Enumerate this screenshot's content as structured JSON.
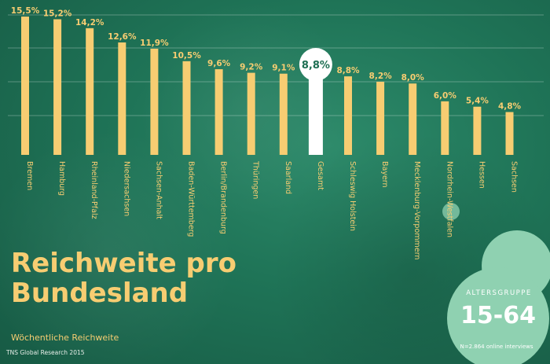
{
  "chart_data": {
    "type": "bar",
    "categories": [
      "Bremen",
      "Hamburg",
      "Rheinland-Pfalz",
      "Niedersachsen",
      "Sachsen-Anhalt",
      "Baden-Württemberg",
      "Berlin/Brandenburg",
      "Thüringen",
      "Saarland",
      "Gesamt",
      "Schleswig Holstein",
      "Bayern",
      "Mecklenburg-Vorpommern",
      "Nordrhein-Westfalen",
      "Hessen",
      "Sachsen"
    ],
    "values": [
      15.5,
      15.2,
      14.2,
      12.6,
      11.9,
      10.5,
      9.6,
      9.2,
      9.1,
      8.8,
      8.8,
      8.2,
      8.0,
      6.0,
      5.4,
      4.8
    ],
    "value_labels": [
      "15,5%",
      "15,2%",
      "14,2%",
      "12,6%",
      "11,9%",
      "10,5%",
      "9,6%",
      "9,2%",
      "9,1%",
      "8,8%",
      "8,8%",
      "8,2%",
      "8,0%",
      "6,0%",
      "5,4%",
      "4,8%"
    ],
    "highlight_category": "Gesamt",
    "ylim": [
      0,
      16
    ],
    "grid": true,
    "title": "Reichweite pro Bundesland",
    "subtitle": "Wöchentliche Reichweite"
  },
  "title_lines": [
    "Reichweite pro",
    "Bundesland"
  ],
  "subtitle": "Wöchentliche Reichweite",
  "source": "TNS Global Research 2015",
  "badge": {
    "label": "ALTERSGRUPPE",
    "value": "15-64",
    "note": "N=2.864 online interviews"
  },
  "colors": {
    "bar": "#f7cd72",
    "highlight": "#ffffff",
    "background": "#1f7457",
    "badge": "#8fd1b1"
  }
}
